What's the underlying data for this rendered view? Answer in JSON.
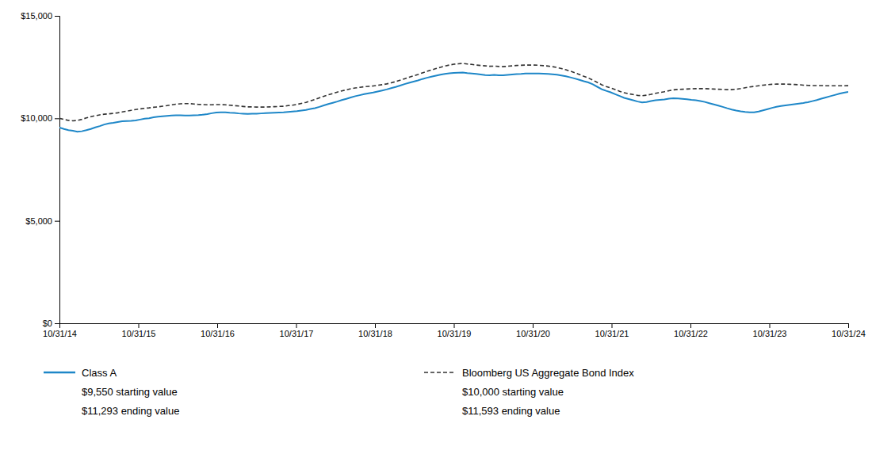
{
  "chart_data": {
    "type": "line",
    "xlim": [
      0,
      10
    ],
    "xticks": [
      {
        "value": 0,
        "label": "10/31/14"
      },
      {
        "value": 1,
        "label": "10/31/15"
      },
      {
        "value": 2,
        "label": "10/31/16"
      },
      {
        "value": 3,
        "label": "10/31/17"
      },
      {
        "value": 4,
        "label": "10/31/18"
      },
      {
        "value": 5,
        "label": "10/31/19"
      },
      {
        "value": 6,
        "label": "10/31/20"
      },
      {
        "value": 7,
        "label": "10/31/21"
      },
      {
        "value": 8,
        "label": "10/31/22"
      },
      {
        "value": 9,
        "label": "10/31/23"
      },
      {
        "value": 10,
        "label": "10/31/24"
      }
    ],
    "ylim": [
      0,
      15000
    ],
    "yticks": [
      {
        "value": 0,
        "label": "$0"
      },
      {
        "value": 5000,
        "label": "$5,000"
      },
      {
        "value": 10000,
        "label": "$10,000"
      },
      {
        "value": 15000,
        "label": "$15,000"
      }
    ],
    "grid": false,
    "legend": "bottom",
    "series": [
      {
        "name": "Class A",
        "color": "#1e87c8",
        "line_style": "solid",
        "annotations": [
          "$9,550 starting value",
          "$11,293 ending value"
        ],
        "values": [
          9550,
          9480,
          9420,
          9390,
          9350,
          9370,
          9420,
          9480,
          9560,
          9620,
          9700,
          9750,
          9780,
          9820,
          9860,
          9870,
          9880,
          9900,
          9940,
          9980,
          10000,
          10050,
          10080,
          10100,
          10120,
          10140,
          10150,
          10150,
          10140,
          10140,
          10150,
          10160,
          10180,
          10210,
          10250,
          10280,
          10290,
          10290,
          10270,
          10260,
          10240,
          10230,
          10220,
          10230,
          10230,
          10240,
          10250,
          10260,
          10270,
          10280,
          10290,
          10310,
          10330,
          10350,
          10380,
          10410,
          10460,
          10500,
          10560,
          10630,
          10700,
          10760,
          10820,
          10890,
          10950,
          11020,
          11080,
          11130,
          11180,
          11220,
          11260,
          11310,
          11360,
          11410,
          11470,
          11530,
          11600,
          11670,
          11730,
          11790,
          11850,
          11920,
          11980,
          12030,
          12080,
          12130,
          12170,
          12200,
          12220,
          12230,
          12240,
          12210,
          12190,
          12170,
          12140,
          12110,
          12100,
          12120,
          12100,
          12100,
          12120,
          12140,
          12160,
          12170,
          12190,
          12190,
          12190,
          12190,
          12180,
          12170,
          12150,
          12130,
          12090,
          12050,
          12000,
          11940,
          11880,
          11810,
          11750,
          11660,
          11540,
          11420,
          11340,
          11270,
          11180,
          11090,
          11000,
          10940,
          10880,
          10820,
          10780,
          10800,
          10840,
          10880,
          10900,
          10920,
          10960,
          10980,
          10970,
          10950,
          10930,
          10900,
          10880,
          10840,
          10800,
          10740,
          10680,
          10620,
          10560,
          10490,
          10430,
          10380,
          10340,
          10310,
          10290,
          10290,
          10330,
          10390,
          10450,
          10510,
          10560,
          10600,
          10630,
          10660,
          10690,
          10720,
          10750,
          10790,
          10840,
          10890,
          10960,
          11020,
          11080,
          11140,
          11200,
          11250,
          11293
        ]
      },
      {
        "name": "Bloomberg US Aggregate Bond Index",
        "color": "#333333",
        "line_style": "dashed",
        "annotations": [
          "$10,000 starting value",
          "$11,593 ending value"
        ],
        "values": [
          10000,
          9950,
          9900,
          9880,
          9900,
          9950,
          10020,
          10080,
          10130,
          10170,
          10200,
          10220,
          10240,
          10270,
          10310,
          10350,
          10390,
          10430,
          10460,
          10490,
          10510,
          10540,
          10560,
          10590,
          10620,
          10660,
          10690,
          10710,
          10720,
          10720,
          10700,
          10680,
          10670,
          10660,
          10660,
          10670,
          10670,
          10660,
          10640,
          10620,
          10600,
          10580,
          10560,
          10560,
          10550,
          10550,
          10550,
          10560,
          10570,
          10580,
          10590,
          10620,
          10640,
          10680,
          10730,
          10780,
          10850,
          10920,
          11000,
          11080,
          11150,
          11210,
          11280,
          11340,
          11390,
          11440,
          11480,
          11510,
          11540,
          11560,
          11580,
          11610,
          11640,
          11680,
          11730,
          11790,
          11860,
          11930,
          12000,
          12070,
          12140,
          12220,
          12290,
          12360,
          12430,
          12490,
          12550,
          12600,
          12640,
          12660,
          12680,
          12650,
          12630,
          12600,
          12580,
          12560,
          12540,
          12550,
          12530,
          12520,
          12540,
          12560,
          12580,
          12590,
          12600,
          12600,
          12600,
          12590,
          12570,
          12550,
          12520,
          12480,
          12430,
          12370,
          12300,
          12220,
          12140,
          12050,
          11970,
          11870,
          11750,
          11640,
          11550,
          11480,
          11400,
          11320,
          11250,
          11200,
          11160,
          11120,
          11100,
          11130,
          11170,
          11220,
          11260,
          11300,
          11350,
          11390,
          11410,
          11420,
          11430,
          11440,
          11450,
          11450,
          11450,
          11440,
          11430,
          11420,
          11410,
          11400,
          11400,
          11420,
          11450,
          11490,
          11530,
          11560,
          11590,
          11620,
          11640,
          11660,
          11670,
          11670,
          11670,
          11660,
          11650,
          11640,
          11620,
          11610,
          11600,
          11600,
          11600,
          11590,
          11590,
          11590,
          11590,
          11590,
          11593
        ]
      }
    ]
  }
}
